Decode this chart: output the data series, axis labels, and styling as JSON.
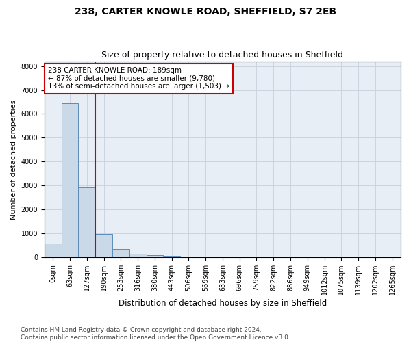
{
  "title1": "238, CARTER KNOWLE ROAD, SHEFFIELD, S7 2EB",
  "title2": "Size of property relative to detached houses in Sheffield",
  "xlabel": "Distribution of detached houses by size in Sheffield",
  "ylabel": "Number of detached properties",
  "bar_labels": [
    "0sqm",
    "63sqm",
    "127sqm",
    "190sqm",
    "253sqm",
    "316sqm",
    "380sqm",
    "443sqm",
    "506sqm",
    "569sqm",
    "633sqm",
    "696sqm",
    "759sqm",
    "822sqm",
    "886sqm",
    "949sqm",
    "1012sqm",
    "1075sqm",
    "1139sqm",
    "1202sqm",
    "1265sqm"
  ],
  "bar_heights": [
    570,
    6430,
    2920,
    980,
    360,
    160,
    90,
    70,
    0,
    0,
    0,
    0,
    0,
    0,
    0,
    0,
    0,
    0,
    0,
    0,
    0
  ],
  "bar_color": "#c9d9e8",
  "bar_edge_color": "#5b8db8",
  "vline_x_index": 3,
  "vline_color": "#cc0000",
  "annotation_text": "238 CARTER KNOWLE ROAD: 189sqm\n← 87% of detached houses are smaller (9,780)\n13% of semi-detached houses are larger (1,503) →",
  "annotation_box_color": "#ffffff",
  "annotation_box_edge": "#cc0000",
  "ylim": [
    0,
    8200
  ],
  "yticks": [
    0,
    1000,
    2000,
    3000,
    4000,
    5000,
    6000,
    7000,
    8000
  ],
  "bg_color": "#ffffff",
  "axes_bg_color": "#e8eef5",
  "grid_color": "#c8d0dc",
  "footnote": "Contains HM Land Registry data © Crown copyright and database right 2024.\nContains public sector information licensed under the Open Government Licence v3.0.",
  "title1_fontsize": 10,
  "title2_fontsize": 9,
  "xlabel_fontsize": 8.5,
  "ylabel_fontsize": 8,
  "tick_fontsize": 7,
  "annot_fontsize": 7.5,
  "footnote_fontsize": 6.5
}
